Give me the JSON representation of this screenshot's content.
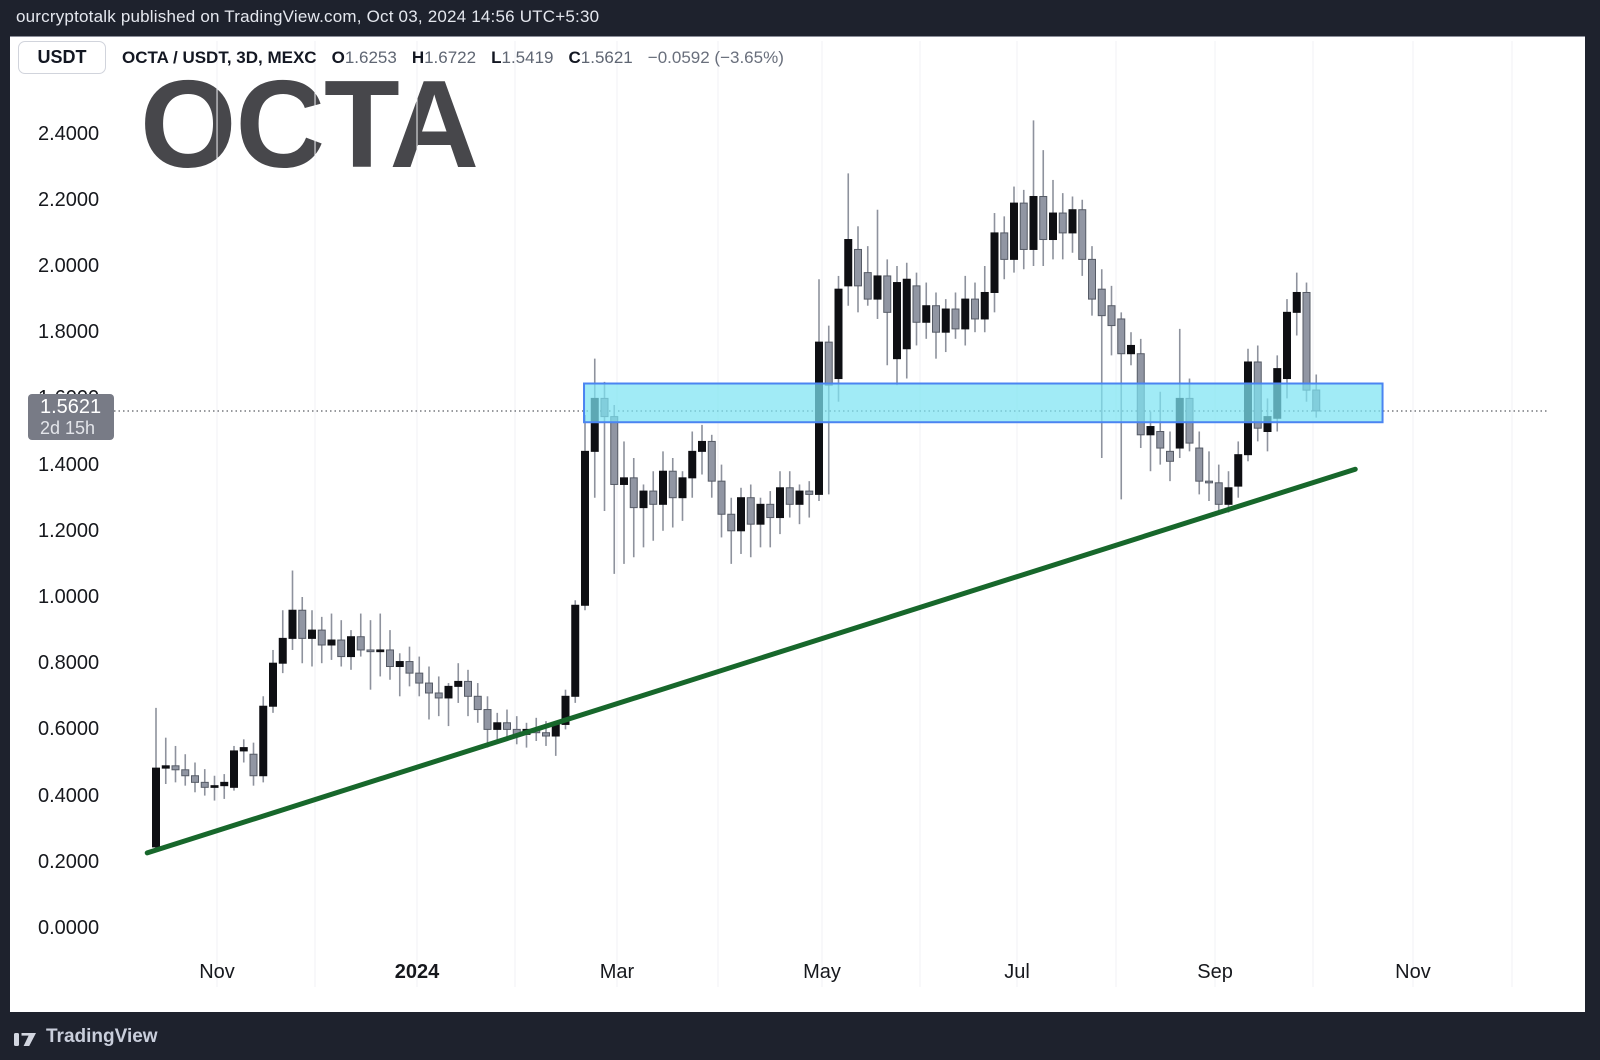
{
  "header": {
    "publisher_line": "ourcryptotalk published on TradingView.com, Oct 03, 2024 14:56 UTC+5:30"
  },
  "toolbar": {
    "quote_currency_button": "USDT"
  },
  "legend": {
    "symbol_text": "OCTA / USDT, 3D, MEXC",
    "ohlc": [
      {
        "k": "O",
        "v": "1.6253"
      },
      {
        "k": "H",
        "v": "1.6722"
      },
      {
        "k": "L",
        "v": "1.5419"
      },
      {
        "k": "C",
        "v": "1.5621"
      }
    ],
    "change_text": "−0.0592 (−3.65%)"
  },
  "watermark_text": "OCTA",
  "price_label": {
    "price": "1.5621",
    "countdown": "2d 15h"
  },
  "footer": {
    "brand": "TradingView",
    "logo_icon": "tradingview-logo"
  },
  "chart_data": {
    "type": "candlestick",
    "title": "OCTA / USDT, 3D, MEXC",
    "ylim": [
      0.0,
      2.56
    ],
    "grid": "vertical-months-only",
    "y_axis": {
      "ticks": [
        {
          "label": "0.0000",
          "value": 0.0
        },
        {
          "label": "0.2000",
          "value": 0.2
        },
        {
          "label": "0.4000",
          "value": 0.4
        },
        {
          "label": "0.6000",
          "value": 0.6
        },
        {
          "label": "0.8000",
          "value": 0.8
        },
        {
          "label": "1.0000",
          "value": 1.0
        },
        {
          "label": "1.2000",
          "value": 1.2
        },
        {
          "label": "1.4000",
          "value": 1.4
        },
        {
          "label": "1.6000",
          "value": 1.6
        },
        {
          "label": "1.8000",
          "value": 1.8
        },
        {
          "label": "2.0000",
          "value": 2.0
        },
        {
          "label": "2.2000",
          "value": 2.2
        },
        {
          "label": "2.4000",
          "value": 2.4
        }
      ]
    },
    "x_axis": {
      "gridline_indices": [
        6.26,
        16.31,
        26.77,
        36.82,
        47.28,
        57.64,
        68.31,
        78.36,
        88.31,
        98.46,
        108.62,
        118.67,
        128.92,
        139.08
      ],
      "ticks": [
        {
          "label": "Nov",
          "index": 6.26
        },
        {
          "label": "2024",
          "index": 26.77,
          "bold": true
        },
        {
          "label": "Mar",
          "index": 47.28
        },
        {
          "label": "May",
          "index": 68.31
        },
        {
          "label": "Jul",
          "index": 88.31
        },
        {
          "label": "Sep",
          "index": 108.62
        },
        {
          "label": "Nov",
          "index": 128.92
        }
      ]
    },
    "candles_format": [
      "open",
      "high",
      "low",
      "close"
    ],
    "candles": [
      [
        0.245,
        0.665,
        0.235,
        0.483
      ],
      [
        0.483,
        0.575,
        0.435,
        0.49
      ],
      [
        0.49,
        0.55,
        0.44,
        0.478
      ],
      [
        0.478,
        0.525,
        0.43,
        0.46
      ],
      [
        0.46,
        0.5,
        0.41,
        0.44
      ],
      [
        0.44,
        0.48,
        0.4,
        0.425
      ],
      [
        0.425,
        0.46,
        0.385,
        0.43
      ],
      [
        0.43,
        0.465,
        0.39,
        0.44
      ],
      [
        0.425,
        0.55,
        0.415,
        0.535
      ],
      [
        0.535,
        0.57,
        0.5,
        0.545
      ],
      [
        0.525,
        0.56,
        0.43,
        0.46
      ],
      [
        0.46,
        0.7,
        0.44,
        0.67
      ],
      [
        0.67,
        0.84,
        0.65,
        0.8
      ],
      [
        0.8,
        0.96,
        0.77,
        0.875
      ],
      [
        0.875,
        1.08,
        0.84,
        0.96
      ],
      [
        0.96,
        1.0,
        0.8,
        0.875
      ],
      [
        0.875,
        0.96,
        0.79,
        0.9
      ],
      [
        0.9,
        0.94,
        0.8,
        0.855
      ],
      [
        0.855,
        0.95,
        0.81,
        0.87
      ],
      [
        0.87,
        0.93,
        0.79,
        0.82
      ],
      [
        0.82,
        0.9,
        0.78,
        0.88
      ],
      [
        0.88,
        0.95,
        0.82,
        0.84
      ],
      [
        0.84,
        0.93,
        0.72,
        0.835
      ],
      [
        0.835,
        0.95,
        0.76,
        0.84
      ],
      [
        0.84,
        0.9,
        0.75,
        0.79
      ],
      [
        0.79,
        0.83,
        0.7,
        0.805
      ],
      [
        0.805,
        0.85,
        0.73,
        0.77
      ],
      [
        0.77,
        0.82,
        0.7,
        0.74
      ],
      [
        0.74,
        0.79,
        0.63,
        0.71
      ],
      [
        0.71,
        0.76,
        0.64,
        0.695
      ],
      [
        0.695,
        0.74,
        0.61,
        0.73
      ],
      [
        0.73,
        0.8,
        0.68,
        0.745
      ],
      [
        0.745,
        0.78,
        0.64,
        0.7
      ],
      [
        0.7,
        0.74,
        0.62,
        0.66
      ],
      [
        0.66,
        0.7,
        0.545,
        0.6
      ],
      [
        0.6,
        0.65,
        0.56,
        0.62
      ],
      [
        0.62,
        0.66,
        0.57,
        0.6
      ],
      [
        0.6,
        0.64,
        0.555,
        0.585
      ],
      [
        0.585,
        0.62,
        0.545,
        0.6
      ],
      [
        0.6,
        0.635,
        0.565,
        0.59
      ],
      [
        0.59,
        0.625,
        0.55,
        0.58
      ],
      [
        0.58,
        0.62,
        0.52,
        0.615
      ],
      [
        0.615,
        0.72,
        0.6,
        0.7
      ],
      [
        0.7,
        0.99,
        0.68,
        0.975
      ],
      [
        0.975,
        1.55,
        0.96,
        1.44
      ],
      [
        1.44,
        1.72,
        1.3,
        1.6
      ],
      [
        1.6,
        1.65,
        1.26,
        1.545
      ],
      [
        1.545,
        1.58,
        1.07,
        1.34
      ],
      [
        1.34,
        1.47,
        1.1,
        1.36
      ],
      [
        1.36,
        1.42,
        1.12,
        1.27
      ],
      [
        1.27,
        1.34,
        1.15,
        1.32
      ],
      [
        1.32,
        1.38,
        1.17,
        1.28
      ],
      [
        1.28,
        1.44,
        1.2,
        1.38
      ],
      [
        1.38,
        1.42,
        1.21,
        1.3
      ],
      [
        1.3,
        1.38,
        1.23,
        1.36
      ],
      [
        1.36,
        1.5,
        1.3,
        1.44
      ],
      [
        1.44,
        1.52,
        1.37,
        1.47
      ],
      [
        1.47,
        1.49,
        1.3,
        1.35
      ],
      [
        1.35,
        1.4,
        1.18,
        1.25
      ],
      [
        1.25,
        1.3,
        1.1,
        1.2
      ],
      [
        1.2,
        1.33,
        1.13,
        1.3
      ],
      [
        1.3,
        1.34,
        1.12,
        1.22
      ],
      [
        1.22,
        1.3,
        1.15,
        1.28
      ],
      [
        1.28,
        1.32,
        1.15,
        1.24
      ],
      [
        1.24,
        1.38,
        1.19,
        1.33
      ],
      [
        1.33,
        1.38,
        1.24,
        1.28
      ],
      [
        1.28,
        1.34,
        1.22,
        1.32
      ],
      [
        1.32,
        1.35,
        1.24,
        1.31
      ],
      [
        1.31,
        1.96,
        1.29,
        1.77
      ],
      [
        1.77,
        1.82,
        1.31,
        1.64
      ],
      [
        1.66,
        1.97,
        1.59,
        1.93
      ],
      [
        1.94,
        2.28,
        1.88,
        2.08
      ],
      [
        2.05,
        2.12,
        1.86,
        1.94
      ],
      [
        1.98,
        2.06,
        1.88,
        1.9
      ],
      [
        1.9,
        2.17,
        1.84,
        1.97
      ],
      [
        1.97,
        2.02,
        1.7,
        1.86
      ],
      [
        1.72,
        2.0,
        1.64,
        1.95
      ],
      [
        1.75,
        2.01,
        1.66,
        1.96
      ],
      [
        1.94,
        1.98,
        1.76,
        1.83
      ],
      [
        1.83,
        1.95,
        1.78,
        1.88
      ],
      [
        1.88,
        1.92,
        1.72,
        1.8
      ],
      [
        1.8,
        1.9,
        1.74,
        1.87
      ],
      [
        1.87,
        1.92,
        1.78,
        1.81
      ],
      [
        1.81,
        1.97,
        1.76,
        1.9
      ],
      [
        1.9,
        1.95,
        1.8,
        1.84
      ],
      [
        1.84,
        2.0,
        1.8,
        1.92
      ],
      [
        1.92,
        2.16,
        1.86,
        2.1
      ],
      [
        2.1,
        2.15,
        1.96,
        2.02
      ],
      [
        2.02,
        2.24,
        1.98,
        2.19
      ],
      [
        2.19,
        2.23,
        1.99,
        2.05
      ],
      [
        2.05,
        2.44,
        2.0,
        2.21
      ],
      [
        2.21,
        2.35,
        2.0,
        2.08
      ],
      [
        2.08,
        2.26,
        2.02,
        2.16
      ],
      [
        2.16,
        2.22,
        2.02,
        2.1
      ],
      [
        2.1,
        2.21,
        2.04,
        2.17
      ],
      [
        2.17,
        2.2,
        1.97,
        2.02
      ],
      [
        2.02,
        2.06,
        1.85,
        1.9
      ],
      [
        1.93,
        1.99,
        1.42,
        1.85
      ],
      [
        1.88,
        1.94,
        1.73,
        1.82
      ],
      [
        1.84,
        1.86,
        1.295,
        1.735
      ],
      [
        1.735,
        1.8,
        1.7,
        1.76
      ],
      [
        1.735,
        1.78,
        1.45,
        1.49
      ],
      [
        1.49,
        1.56,
        1.38,
        1.515
      ],
      [
        1.5,
        1.62,
        1.4,
        1.45
      ],
      [
        1.44,
        1.5,
        1.35,
        1.41
      ],
      [
        1.45,
        1.81,
        1.42,
        1.6
      ],
      [
        1.6,
        1.66,
        1.44,
        1.465
      ],
      [
        1.45,
        1.5,
        1.31,
        1.35
      ],
      [
        1.35,
        1.44,
        1.29,
        1.345
      ],
      [
        1.345,
        1.4,
        1.26,
        1.28
      ],
      [
        1.28,
        1.38,
        1.255,
        1.33
      ],
      [
        1.335,
        1.47,
        1.3,
        1.43
      ],
      [
        1.43,
        1.75,
        1.41,
        1.71
      ],
      [
        1.71,
        1.76,
        1.47,
        1.51
      ],
      [
        1.5,
        1.6,
        1.44,
        1.545
      ],
      [
        1.54,
        1.73,
        1.5,
        1.69
      ],
      [
        1.66,
        1.9,
        1.6,
        1.86
      ],
      [
        1.86,
        1.98,
        1.79,
        1.92
      ],
      [
        1.92,
        1.95,
        1.59,
        1.625
      ],
      [
        1.6253,
        1.6722,
        1.5419,
        1.5621
      ]
    ],
    "price_line": {
      "price": 1.5621,
      "countdown": "2d 15h"
    },
    "supply_zone": {
      "price_top": 1.645,
      "price_bottom": 1.528,
      "start_index": 43.9,
      "end_index": 125.8
    },
    "trendline": {
      "start": {
        "index": -0.9,
        "price": 0.227
      },
      "end": {
        "index": 123.0,
        "price": 1.386
      }
    },
    "style": {
      "up_fill": "#0e0f13",
      "down_fill": "#9196a3",
      "down_border": "#565b66",
      "wick": "#8e929d",
      "trendline": "#17672b",
      "zone_fill": "rgba(125,227,242,0.72)",
      "zone_border": "#4b84f1",
      "gridline": "#f1f2f5",
      "price_line": "#30343c",
      "label_bg": "#787b86"
    }
  }
}
